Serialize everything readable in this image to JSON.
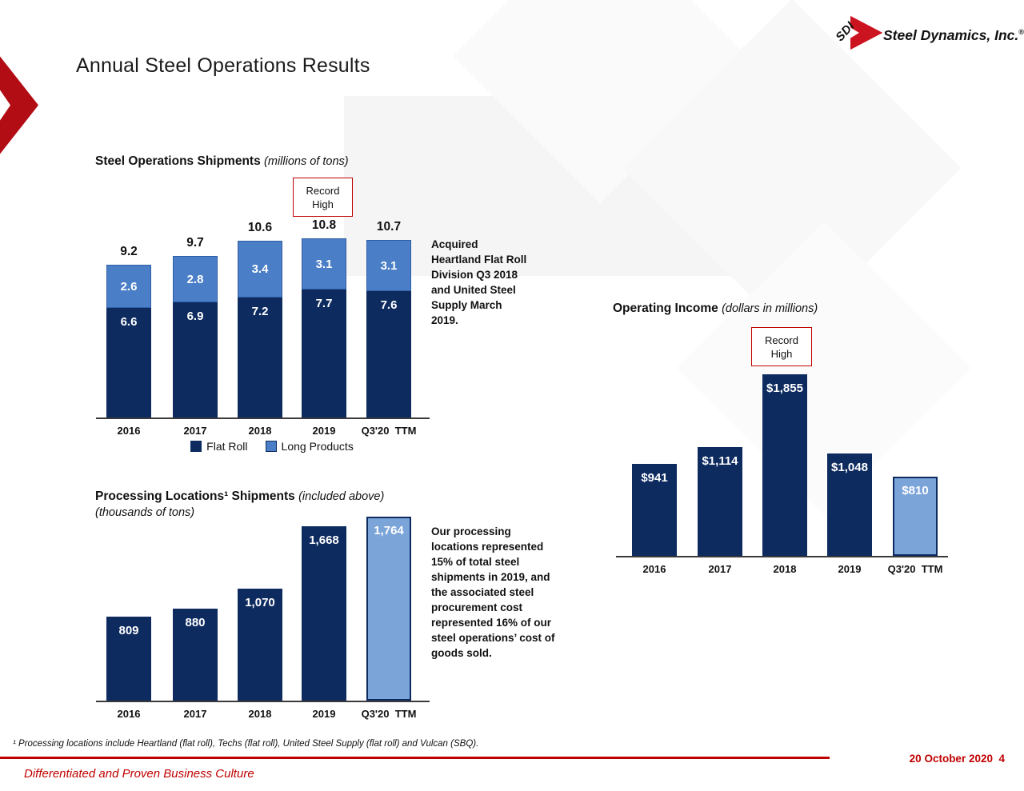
{
  "slide": {
    "title": "Annual Steel Operations Results",
    "logo": {
      "sdi": "SDI",
      "wordmark": "Steel Dynamics, Inc.",
      "reg": "®"
    },
    "colors": {
      "navy": "#0e2b60",
      "blue": "#4a7ec7",
      "light_blue": "#7ba4d9",
      "red": "#c00000",
      "arrow_red": "#b20d15"
    },
    "footnote": "¹ Processing locations include Heartland (flat roll), Techs (flat roll), United Steel Supply (flat roll) and Vulcan (SBQ).",
    "footer": {
      "date": "20 October 2020",
      "page": "4",
      "tagline": "Differentiated and Proven Business Culture"
    }
  },
  "annotations": {
    "acquired": "Acquired Heartland Flat Roll Division Q3 2018 and United Steel Supply March 2019.",
    "processing": "Our processing locations represented 15% of total steel shipments in 2019, and the associated steel procurement cost represented 16% of our steel operations’ cost of goods sold."
  },
  "chart_data": [
    {
      "id": "steel-operations-shipments",
      "type": "bar",
      "stacked": true,
      "title": "Steel Operations Shipments",
      "subtitle": "(millions of tons)",
      "categories": [
        "2016",
        "2017",
        "2018",
        "2019",
        "Q3'20  TTM"
      ],
      "series": [
        {
          "name": "Flat Roll",
          "color_key": "navy",
          "values": [
            6.6,
            6.9,
            7.2,
            7.7,
            7.6
          ],
          "labels": [
            "6.6",
            "6.9",
            "7.2",
            "7.7",
            "7.6"
          ]
        },
        {
          "name": "Long Products",
          "color_key": "blue",
          "values": [
            2.6,
            2.8,
            3.4,
            3.1,
            3.1
          ],
          "labels": [
            "2.6",
            "2.8",
            "3.4",
            "3.1",
            "3.1"
          ]
        }
      ],
      "totals": [
        9.2,
        9.7,
        10.6,
        10.8,
        10.7
      ],
      "total_labels": [
        "9.2",
        "9.7",
        "10.6",
        "10.8",
        "10.7"
      ],
      "annotation": {
        "text": "Record High",
        "target_category": "2019"
      },
      "legend_position": "bottom",
      "ylim": [
        0,
        10.8
      ],
      "grid": false
    },
    {
      "id": "operating-income",
      "type": "bar",
      "stacked": false,
      "title": "Operating Income",
      "subtitle": "(dollars in millions)",
      "categories": [
        "2016",
        "2017",
        "2018",
        "2019",
        "Q3'20  TTM"
      ],
      "values": [
        941,
        1114,
        1855,
        1048,
        810
      ],
      "labels": [
        "$941",
        "$1,114",
        "$1,855",
        "$1,048",
        "$810"
      ],
      "bar_color_keys": [
        "navy",
        "navy",
        "navy",
        "navy",
        "light_blue"
      ],
      "annotation": {
        "text": "Record High",
        "target_category": "2018"
      },
      "ylim": [
        0,
        1855
      ],
      "grid": false
    },
    {
      "id": "processing-locations-shipments",
      "type": "bar",
      "stacked": false,
      "title": "Processing Locations¹ Shipments",
      "subtitle": "(included above)",
      "subtitle2": "(thousands of tons)",
      "categories": [
        "2016",
        "2017",
        "2018",
        "2019",
        "Q3'20  TTM"
      ],
      "values": [
        809,
        880,
        1070,
        1668,
        1764
      ],
      "labels": [
        "809",
        "880",
        "1,070",
        "1,668",
        "1,764"
      ],
      "bar_color_keys": [
        "navy",
        "navy",
        "navy",
        "navy",
        "light_blue"
      ],
      "ylim": [
        0,
        1764
      ],
      "grid": false
    }
  ]
}
